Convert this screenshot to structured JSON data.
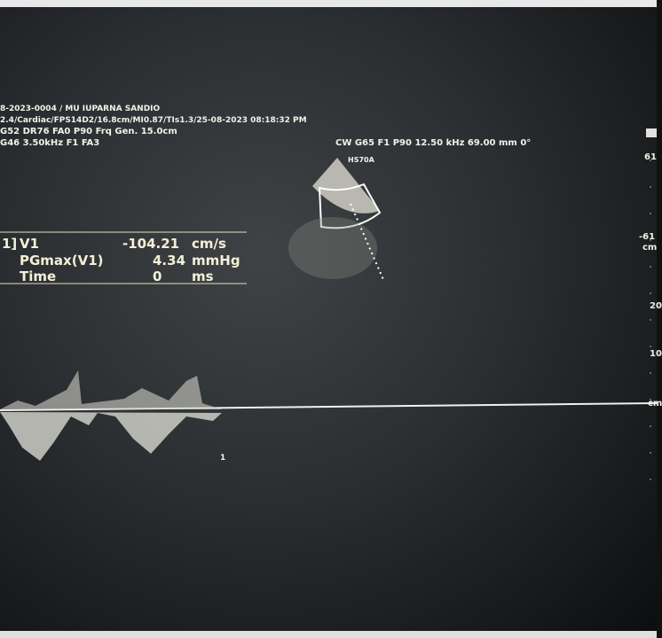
{
  "header": {
    "lines": [
      "8-2023-0004 / MU IUPARNA SANDIO",
      "2.4/Cardiac/FPS14D2/16.8cm/MI0.87/TIs1.3/25-08-2023 08:18:32 PM",
      "G52 DR76 FA0 P90 Frq Gen. 15.0cm",
      "G46 3.50kHz F1 FA3"
    ]
  },
  "probe": {
    "settings": "CW G65 F1 P90 12.50 kHz 69.00 mm 0°",
    "name": "HS70A"
  },
  "measurements": {
    "index": "1]",
    "rows": [
      {
        "label": "V1",
        "value": -104.21,
        "unit": "cm/s"
      },
      {
        "label": "PGmax(V1)",
        "value": 4.34,
        "unit": "mmHg"
      },
      {
        "label": "Time",
        "value": 0,
        "unit": "ms"
      }
    ]
  },
  "scale": {
    "top": "61",
    "bottom": "-61",
    "unit": "cm",
    "ticks": [
      "20",
      "10"
    ],
    "baseline_unit": "cm"
  },
  "trace_marker": "1"
}
